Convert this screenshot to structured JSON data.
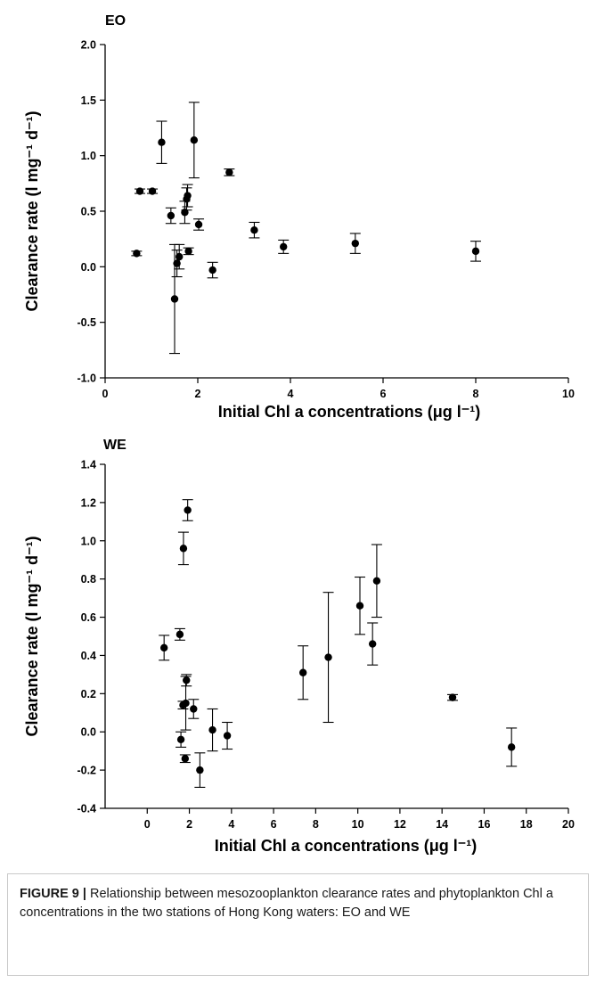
{
  "caption": {
    "label": "FIGURE 9 |",
    "text": " Relationship between mesozooplankton clearance rates and phytoplankton Chl a concentrations in the two stations of Hong Kong waters: EO and WE"
  },
  "chart_data": [
    {
      "type": "scatter",
      "panel_label": "EO",
      "title": "",
      "xlabel": "Initial Chl a concentrations (μg l⁻¹)",
      "ylabel": "Clearance rate (l mg⁻¹ d⁻¹)",
      "xlim": [
        0,
        10
      ],
      "ylim": [
        -1.0,
        2.0
      ],
      "xticks": [
        0,
        2,
        4,
        6,
        8,
        10
      ],
      "yticks": [
        -1.0,
        -0.5,
        0.0,
        0.5,
        1.0,
        1.5,
        2.0
      ],
      "grid": false,
      "points": [
        {
          "x": 0.68,
          "y": 0.12,
          "err": 0.02
        },
        {
          "x": 0.75,
          "y": 0.68,
          "err": 0.02
        },
        {
          "x": 1.02,
          "y": 0.68,
          "err": 0.02
        },
        {
          "x": 1.22,
          "y": 1.12,
          "err": 0.19
        },
        {
          "x": 1.42,
          "y": 0.46,
          "err": 0.07
        },
        {
          "x": 1.5,
          "y": -0.29,
          "err": 0.49
        },
        {
          "x": 1.55,
          "y": 0.03,
          "err": 0.12
        },
        {
          "x": 1.6,
          "y": 0.09,
          "err": 0.11
        },
        {
          "x": 1.72,
          "y": 0.49,
          "err": 0.1
        },
        {
          "x": 1.76,
          "y": 0.61,
          "err": 0.1
        },
        {
          "x": 1.78,
          "y": 0.64,
          "err": 0.1
        },
        {
          "x": 1.8,
          "y": 0.14,
          "err": 0.03
        },
        {
          "x": 1.92,
          "y": 1.14,
          "err": 0.34
        },
        {
          "x": 2.02,
          "y": 0.38,
          "err": 0.05
        },
        {
          "x": 2.32,
          "y": -0.03,
          "err": 0.07
        },
        {
          "x": 2.68,
          "y": 0.85,
          "err": 0.03
        },
        {
          "x": 3.22,
          "y": 0.33,
          "err": 0.07
        },
        {
          "x": 3.85,
          "y": 0.18,
          "err": 0.06
        },
        {
          "x": 5.4,
          "y": 0.21,
          "err": 0.09
        },
        {
          "x": 8.0,
          "y": 0.14,
          "err": 0.09
        }
      ]
    },
    {
      "type": "scatter",
      "panel_label": "WE",
      "title": "",
      "xlabel": "Initial Chl a concentrations (μg l⁻¹)",
      "ylabel": "Clearance rate (l mg⁻¹ d⁻¹)",
      "xlim": [
        -2,
        20
      ],
      "ylim": [
        -0.4,
        1.4
      ],
      "xticks": [
        0,
        2,
        4,
        6,
        8,
        10,
        12,
        14,
        16,
        18,
        20
      ],
      "yticks": [
        -0.4,
        -0.2,
        0.0,
        0.2,
        0.4,
        0.6,
        0.8,
        1.0,
        1.2,
        1.4
      ],
      "grid": false,
      "points": [
        {
          "x": 0.8,
          "y": 0.44,
          "err": 0.065
        },
        {
          "x": 1.55,
          "y": 0.51,
          "err": 0.03
        },
        {
          "x": 1.6,
          "y": -0.04,
          "err": 0.04
        },
        {
          "x": 1.7,
          "y": 0.14,
          "err": 0.02
        },
        {
          "x": 1.72,
          "y": 0.96,
          "err": 0.085
        },
        {
          "x": 1.8,
          "y": -0.14,
          "err": 0.02
        },
        {
          "x": 1.83,
          "y": 0.15,
          "err": 0.14
        },
        {
          "x": 1.86,
          "y": 0.27,
          "err": 0.03
        },
        {
          "x": 1.92,
          "y": 1.16,
          "err": 0.055
        },
        {
          "x": 2.2,
          "y": 0.12,
          "err": 0.05
        },
        {
          "x": 2.5,
          "y": -0.2,
          "err": 0.09
        },
        {
          "x": 3.1,
          "y": 0.01,
          "err": 0.11
        },
        {
          "x": 3.8,
          "y": -0.02,
          "err": 0.07
        },
        {
          "x": 7.4,
          "y": 0.31,
          "err": 0.14
        },
        {
          "x": 8.6,
          "y": 0.39,
          "err": 0.34
        },
        {
          "x": 10.1,
          "y": 0.66,
          "err": 0.15
        },
        {
          "x": 10.7,
          "y": 0.46,
          "err": 0.11
        },
        {
          "x": 10.9,
          "y": 0.79,
          "err": 0.19
        },
        {
          "x": 14.5,
          "y": 0.18,
          "err": 0.015
        },
        {
          "x": 17.3,
          "y": -0.08,
          "err": 0.1
        }
      ]
    }
  ]
}
